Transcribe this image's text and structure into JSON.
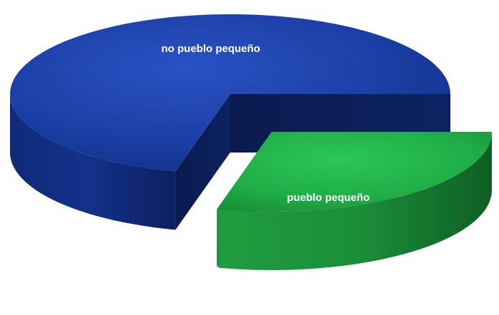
{
  "chart_data": {
    "type": "pie",
    "style": "3d-exploded",
    "slices": [
      {
        "label": "no pueblo pequeño",
        "value": 71,
        "color": "#173a9a",
        "exploded": false
      },
      {
        "label": "pueblo pequeño",
        "value": 29,
        "color": "#1eaa44",
        "exploded": true
      }
    ],
    "legend": "none"
  }
}
